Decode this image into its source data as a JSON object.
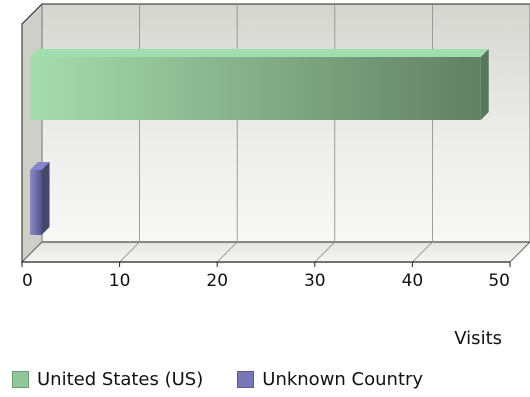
{
  "chart_data": {
    "type": "bar",
    "orientation": "horizontal",
    "style": "3d",
    "categories": [
      "United States (US)",
      "Unknown Country"
    ],
    "series": [
      {
        "name": "United States (US)",
        "values": [
          47,
          null
        ],
        "color": "#8fc79a"
      },
      {
        "name": "Unknown Country",
        "values": [
          null,
          2
        ],
        "color": "#7777b5"
      }
    ],
    "xlabel": "Visits",
    "xlim": [
      0,
      50
    ],
    "xticks": [
      0,
      10,
      20,
      30,
      40,
      50
    ],
    "grid": true,
    "legend_position": "bottom-left"
  }
}
